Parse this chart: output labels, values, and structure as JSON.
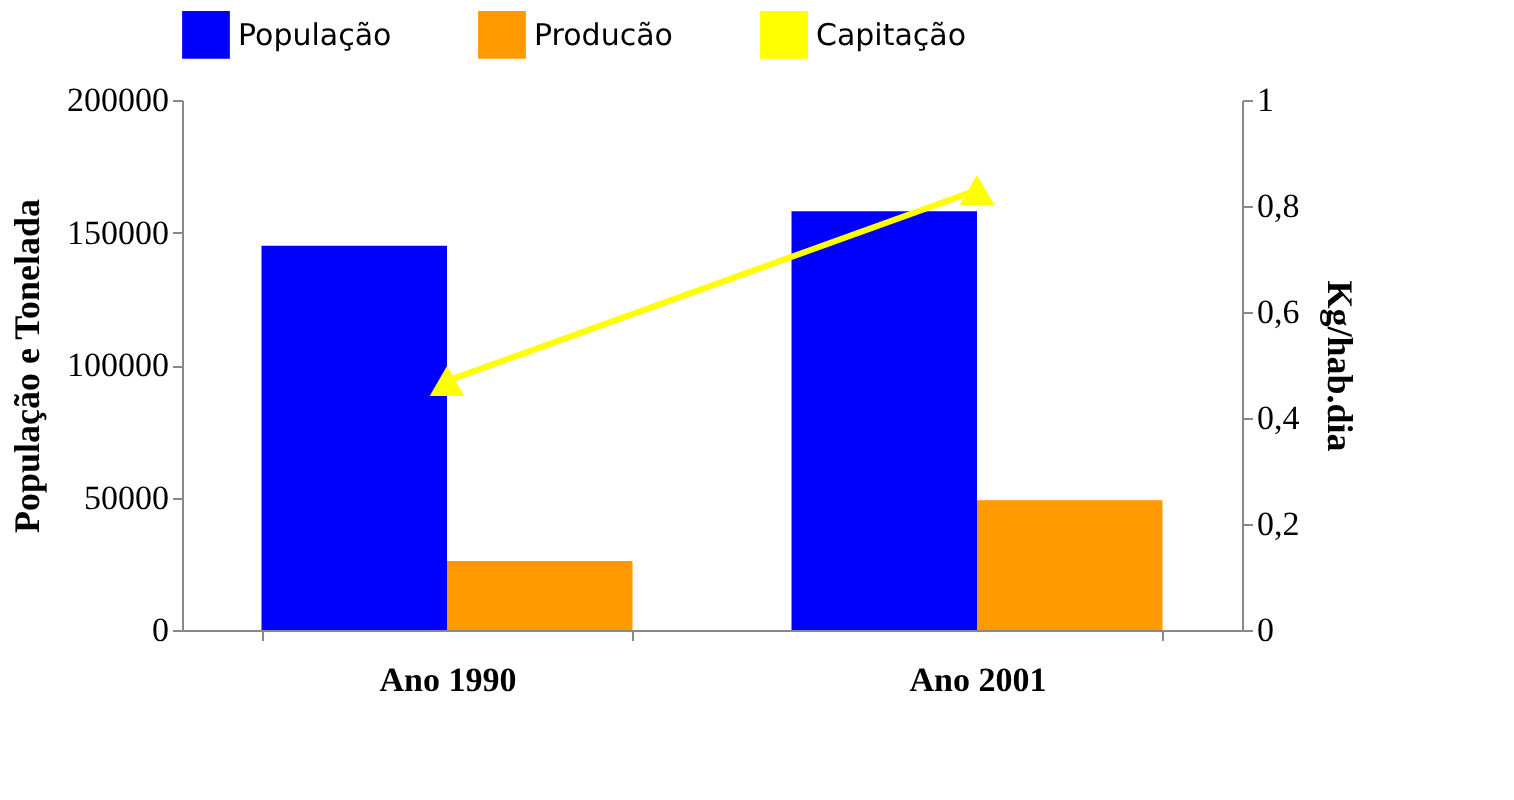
{
  "chart_data": {
    "type": "bar",
    "categories": [
      "Ano 1990",
      "Ano 2001"
    ],
    "ylabel": "População e Tonelada",
    "y2label": "Kg/hab.dia",
    "ylim": [
      0,
      200000
    ],
    "yticks": [
      0,
      50000,
      100000,
      150000,
      200000
    ],
    "y2lim": [
      0,
      1
    ],
    "y2ticks": [
      0,
      {
        "value": 0.2,
        "label": "0,2"
      },
      {
        "value": 0.4,
        "label": "0,4"
      },
      {
        "value": 0.6,
        "label": "0,6"
      },
      {
        "value": 0.8,
        "label": "0,8"
      },
      1
    ],
    "series": [
      {
        "name": "População",
        "color": "#0000ff",
        "values": [
          145000,
          158000
        ]
      },
      {
        "name": "Producão",
        "color": "#ff9900",
        "values": [
          26000,
          49000
        ]
      },
      {
        "name": "Capitação",
        "color": "#ffff00",
        "type": "line",
        "axis": "y2",
        "marker": "triangle",
        "values": [
          0.47,
          0.83
        ]
      }
    ],
    "legend": "top",
    "grid": false
  }
}
